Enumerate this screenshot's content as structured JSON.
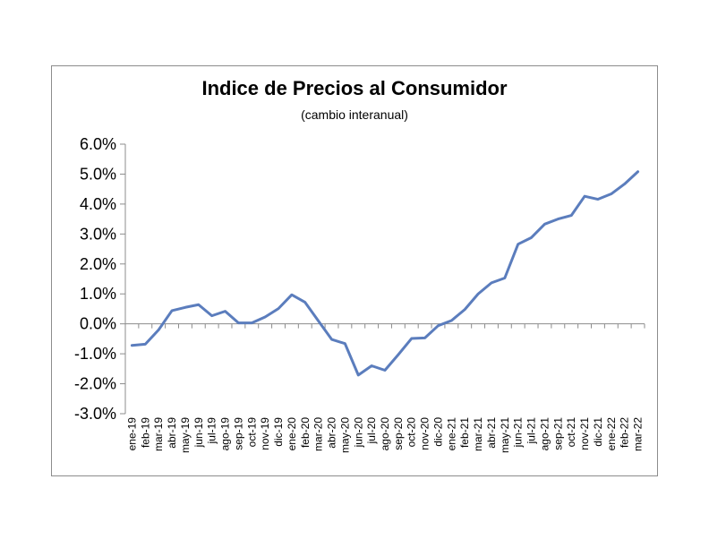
{
  "chart_data": {
    "type": "line",
    "title": "Indice de Precios al Consumidor",
    "subtitle": "(cambio interanual)",
    "xlabel": "",
    "ylabel": "",
    "ylim": [
      -3.0,
      6.0
    ],
    "yticks": [
      "6.0%",
      "5.0%",
      "4.0%",
      "3.0%",
      "2.0%",
      "1.0%",
      "0.0%",
      "-1.0%",
      "-2.0%",
      "-3.0%"
    ],
    "ytick_values": [
      6,
      5,
      4,
      3,
      2,
      1,
      0,
      -1,
      -2,
      -3
    ],
    "categories": [
      "ene-19",
      "feb-19",
      "mar-19",
      "abr-19",
      "may-19",
      "jun-19",
      "jul-19",
      "ago-19",
      "sep-19",
      "oct-19",
      "nov-19",
      "dic-19",
      "ene-20",
      "feb-20",
      "mar-20",
      "abr-20",
      "may-20",
      "jun-20",
      "jul-20",
      "ago-20",
      "sep-20",
      "oct-20",
      "nov-20",
      "dic-20",
      "ene-21",
      "feb-21",
      "mar-21",
      "abr-21",
      "may-21",
      "jun-21",
      "jul-21",
      "ago-21",
      "sep-21",
      "oct-21",
      "nov-21",
      "dic-21",
      "ene-22",
      "feb-22",
      "mar-22"
    ],
    "series": [
      {
        "values": [
          -0.72,
          -0.68,
          -0.2,
          0.44,
          0.55,
          0.64,
          0.27,
          0.42,
          0.03,
          0.03,
          0.23,
          0.51,
          0.97,
          0.72,
          0.1,
          -0.52,
          -0.66,
          -1.71,
          -1.4,
          -1.55,
          -1.03,
          -0.49,
          -0.47,
          -0.06,
          0.11,
          0.48,
          1.0,
          1.37,
          1.53,
          2.66,
          2.88,
          3.33,
          3.5,
          3.62,
          4.26,
          4.16,
          4.34,
          4.67,
          5.08
        ],
        "color": "#5b7dbd"
      }
    ],
    "grid": false,
    "legend": "none"
  }
}
